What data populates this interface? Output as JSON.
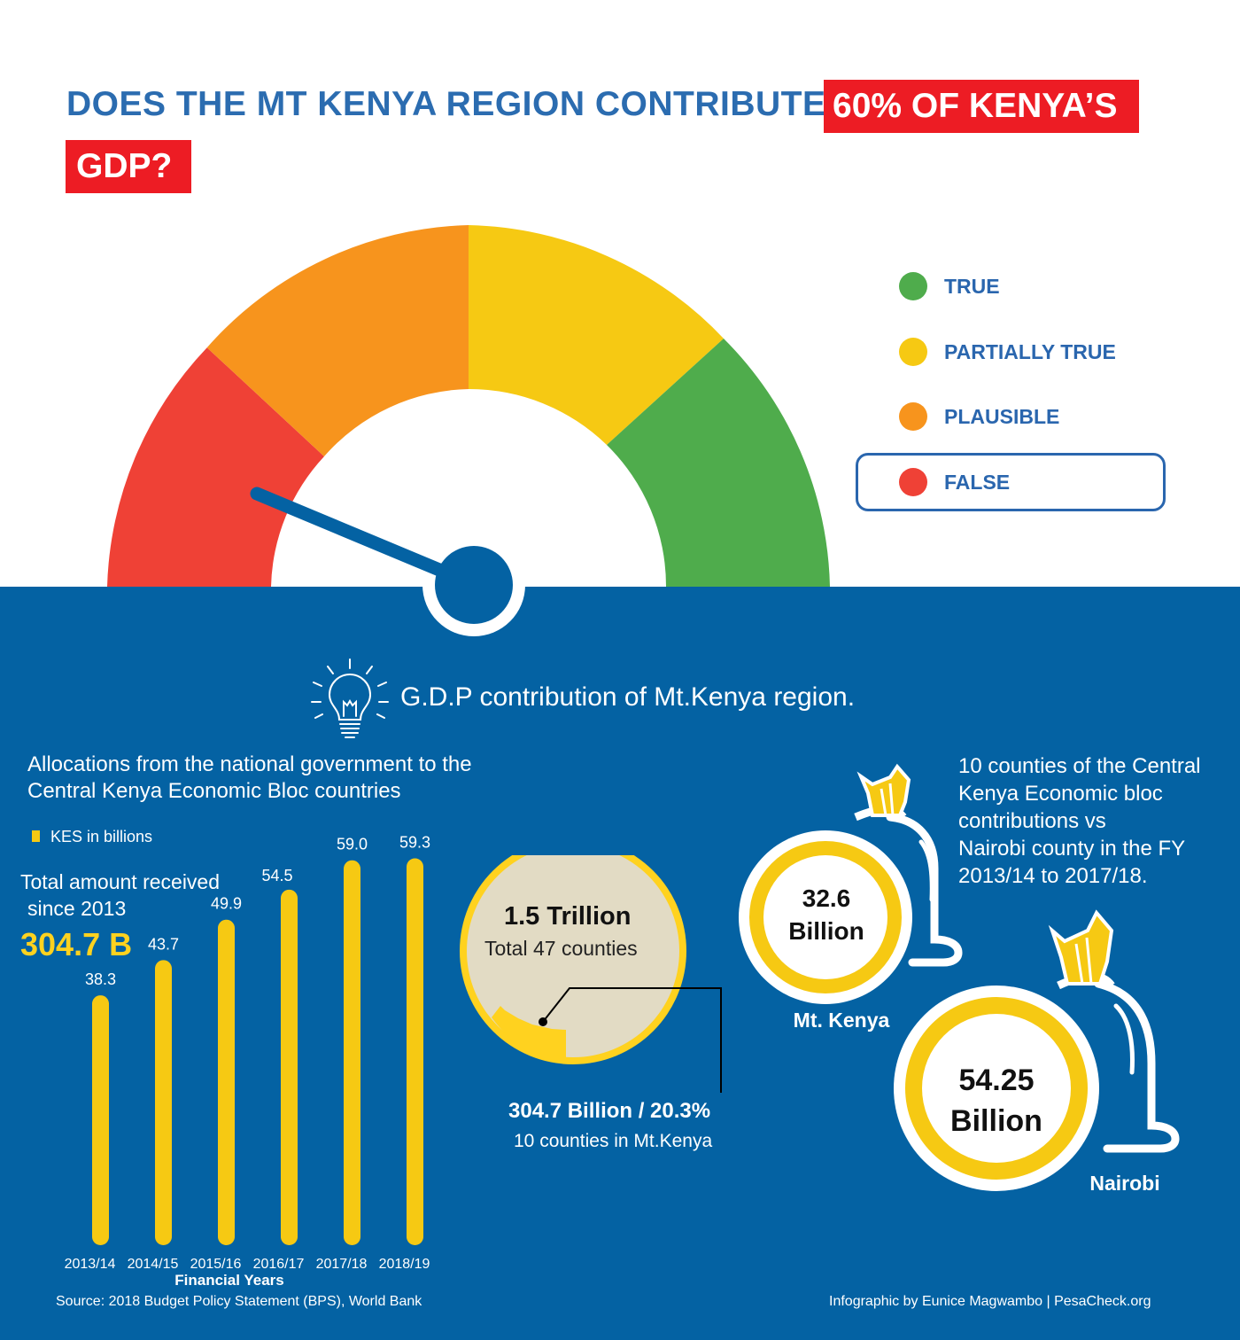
{
  "header": {
    "title_line1": "DOES THE MT KENYA REGION CONTRIBUTE",
    "title_highlight1": "60% OF KENYA’S",
    "title_highlight2": "GDP?"
  },
  "gauge": {
    "segments": [
      "FALSE",
      "PLAUSIBLE",
      "PARTIALLY TRUE",
      "TRUE"
    ],
    "verdict": "FALSE",
    "colors": {
      "false": "#ef4136",
      "plausible": "#f7941d",
      "partially_true": "#f6c913",
      "true": "#4fac4c",
      "needle": "#0462a3"
    }
  },
  "legend": [
    {
      "label": "TRUE",
      "color": "#4fac4c"
    },
    {
      "label": "PARTIALLY TRUE",
      "color": "#f6c913"
    },
    {
      "label": "PLAUSIBLE",
      "color": "#f7941d"
    },
    {
      "label": "FALSE",
      "color": "#ef4136",
      "selected": true
    }
  ],
  "section": {
    "heading": "G.D.P contribution of Mt.Kenya region.",
    "icon": "lightbulb-icon"
  },
  "allocations": {
    "heading_line1": "Allocations from the national government to the",
    "heading_line2": "Central Kenya Economic Bloc countries",
    "legend_label": "KES in billions",
    "total_label_line1": "Total amount received",
    "total_label_line2": "since 2013",
    "total_value": "304.7 B"
  },
  "chart_data": {
    "type": "bar",
    "categories": [
      "2013/14",
      "2014/15",
      "2015/16",
      "2016/17",
      "2017/18",
      "2018/19"
    ],
    "values": [
      38.3,
      43.7,
      49.9,
      54.5,
      59.0,
      59.3
    ],
    "value_labels": [
      "38.3",
      "43.7",
      "49.9",
      "54.5",
      "59.0",
      "59.3"
    ],
    "xlabel": "Financial Years",
    "ylabel": "",
    "ylim": [
      0,
      59.3
    ],
    "bar_color": "#f6c913"
  },
  "pie": {
    "total_value": "1.5 Trillion",
    "total_label": "Total 47 counties",
    "share_value": "304.7 Billion / 20.3%",
    "share_label": "10 counties in Mt.Kenya",
    "share_fraction": 0.203
  },
  "comparison": {
    "description_lines": [
      "10 counties of the Central",
      "Kenya Economic bloc",
      "contributions vs",
      "Nairobi county in the FY",
      "2013/14 to 2017/18."
    ],
    "mtkenya": {
      "value_line1": "32.6",
      "value_line2": "Billion",
      "label": "Mt. Kenya"
    },
    "nairobi": {
      "value_line1": "54.25",
      "value_line2": "Billion",
      "label": "Nairobi"
    }
  },
  "footer": {
    "source": "Source:  2018 Budget Policy Statement (BPS), World Bank",
    "credit": "Infographic by Eunice Magwambo | PesaCheck.org"
  }
}
